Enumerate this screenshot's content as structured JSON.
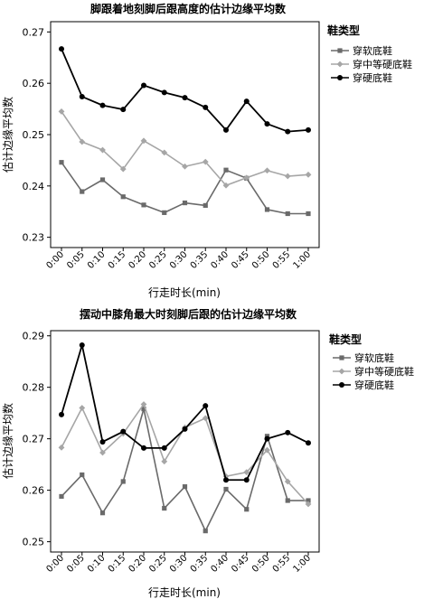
{
  "chart_data": [
    {
      "type": "line",
      "title": "脚跟着地刻脚后跟高度的估计边缘平均数",
      "xlabel": "行走时长(min)",
      "ylabel": "估计边缘平均数",
      "categories": [
        "0:00",
        "0:05",
        "0:10",
        "0:15",
        "0:20",
        "0:25",
        "0:30",
        "0:35",
        "0:40",
        "0:45",
        "0:50",
        "0:55",
        "1:00"
      ],
      "yticks": [
        "0.23",
        "0.24",
        "0.25",
        "0.26",
        "0.27"
      ],
      "ylim": [
        0.228,
        0.272
      ],
      "legend_title": "鞋类型",
      "series": [
        {
          "name": "穿软底鞋",
          "marker": "square",
          "color": "#6a6a6a",
          "values": [
            0.2446,
            0.2389,
            0.2412,
            0.2379,
            0.2363,
            0.2348,
            0.2367,
            0.2362,
            0.2431,
            0.2415,
            0.2354,
            0.2346,
            0.2346
          ]
        },
        {
          "name": "穿中等硬底鞋",
          "marker": "diamond",
          "color": "#a6a6a6",
          "values": [
            0.2545,
            0.2486,
            0.247,
            0.2433,
            0.2488,
            0.2465,
            0.2438,
            0.2447,
            0.2401,
            0.2416,
            0.243,
            0.2419,
            0.2422
          ]
        },
        {
          "name": "穿硬底鞋",
          "marker": "circle",
          "color": "#000000",
          "values": [
            0.2667,
            0.2574,
            0.2557,
            0.2549,
            0.2596,
            0.2582,
            0.2572,
            0.2553,
            0.2509,
            0.2565,
            0.2521,
            0.2506,
            0.2509
          ]
        }
      ]
    },
    {
      "type": "line",
      "title": "摆动中膝角最大时刻脚后跟的估计边缘平均数",
      "xlabel": "行走时长(min)",
      "ylabel": "估计边缘平均数",
      "categories": [
        "0:00",
        "0:05",
        "0:10",
        "0:15",
        "0:20",
        "0:25",
        "0:30",
        "0:35",
        "0:40",
        "0:45",
        "0:50",
        "0:55",
        "1:00"
      ],
      "yticks": [
        "0.25",
        "0.26",
        "0.27",
        "0.28",
        "0.29"
      ],
      "ylim": [
        0.248,
        0.291
      ],
      "legend_title": "鞋类型",
      "series": [
        {
          "name": "穿软底鞋",
          "marker": "square",
          "color": "#6a6a6a",
          "values": [
            0.2588,
            0.263,
            0.2556,
            0.2617,
            0.2758,
            0.2565,
            0.2607,
            0.2521,
            0.2602,
            0.2563,
            0.2705,
            0.258,
            0.258
          ]
        },
        {
          "name": "穿中等硬底鞋",
          "marker": "diamond",
          "color": "#a6a6a6",
          "values": [
            0.2683,
            0.276,
            0.2673,
            0.271,
            0.2767,
            0.2656,
            0.2722,
            0.274,
            0.2627,
            0.2635,
            0.2678,
            0.2617,
            0.2573
          ]
        },
        {
          "name": "穿硬底鞋",
          "marker": "circle",
          "color": "#000000",
          "values": [
            0.2747,
            0.2882,
            0.2694,
            0.2714,
            0.2682,
            0.2682,
            0.2719,
            0.2764,
            0.262,
            0.262,
            0.27,
            0.2712,
            0.2692
          ]
        }
      ]
    }
  ]
}
